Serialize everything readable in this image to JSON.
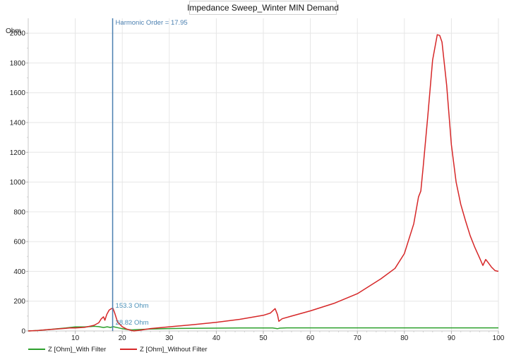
{
  "chart_data": {
    "type": "line",
    "title": "Impedance Sweep_Winter MIN Demand",
    "xlabel": "",
    "ylabel": "Ohm",
    "xlim": [
      0,
      100
    ],
    "ylim": [
      0,
      2100
    ],
    "xticks": [
      10,
      20,
      30,
      40,
      50,
      60,
      70,
      80,
      90,
      100
    ],
    "yticks": [
      0,
      200,
      400,
      600,
      800,
      1000,
      1200,
      1400,
      1600,
      1800,
      2000
    ],
    "grid": true,
    "legend": "bottom-left",
    "cursor": {
      "label": "Harmonic Order = 17.95",
      "x": 17.95,
      "readouts": [
        {
          "text": "153.3 Ohm",
          "y": 153.3,
          "color": "#4a90b8"
        },
        {
          "text": "28.82 Ohm",
          "y": 28.82,
          "color": "#4a90b8"
        }
      ]
    },
    "series": [
      {
        "name": "Z [Ohm]_With Filter",
        "color": "#2ca02c",
        "x": [
          0,
          2,
          4,
          6,
          8,
          10,
          12,
          14,
          15,
          16,
          16.8,
          17.5,
          18,
          19,
          20,
          21,
          22,
          24,
          26,
          30,
          35,
          40,
          45,
          50,
          52,
          53,
          53.5,
          55,
          60,
          65,
          70,
          75,
          80,
          85,
          90,
          95,
          100
        ],
        "y": [
          0,
          3,
          8,
          14,
          20,
          27,
          27,
          31,
          29,
          23,
          28,
          23,
          29,
          22,
          15,
          10,
          7,
          10,
          13,
          16,
          18,
          19,
          20,
          20,
          20,
          15,
          19,
          21,
          21,
          21,
          21,
          21,
          21,
          21,
          21,
          21,
          21
        ]
      },
      {
        "name": "Z [Ohm]_Without Filter",
        "color": "#d62728",
        "x": [
          0,
          2,
          4,
          6,
          8,
          9,
          10,
          12,
          14,
          15,
          15.5,
          16,
          16.3,
          16.7,
          17.2,
          17.7,
          18,
          18.4,
          19,
          20,
          21,
          22,
          22.5,
          24,
          26,
          30,
          35,
          40,
          45,
          50,
          51.5,
          52.5,
          53,
          53.3,
          54,
          56,
          60,
          65,
          70,
          75,
          78,
          80,
          82,
          83,
          83.5,
          84,
          85,
          86,
          87,
          87.5,
          88,
          89,
          90,
          91,
          92,
          93,
          94,
          95,
          96,
          96.7,
          97.3,
          97.8,
          98.5,
          99.3,
          100
        ],
        "y": [
          0,
          3,
          8,
          13,
          18,
          21,
          20,
          24,
          38,
          55,
          80,
          95,
          72,
          110,
          140,
          150,
          153,
          120,
          60,
          28,
          12,
          3,
          0,
          6,
          16,
          28,
          42,
          58,
          78,
          105,
          120,
          150,
          110,
          65,
          82,
          100,
          135,
          185,
          250,
          350,
          420,
          520,
          720,
          900,
          940,
          1100,
          1450,
          1820,
          1990,
          1985,
          1940,
          1650,
          1250,
          1000,
          850,
          740,
          640,
          560,
          490,
          440,
          480,
          460,
          430,
          405,
          400
        ]
      }
    ]
  }
}
